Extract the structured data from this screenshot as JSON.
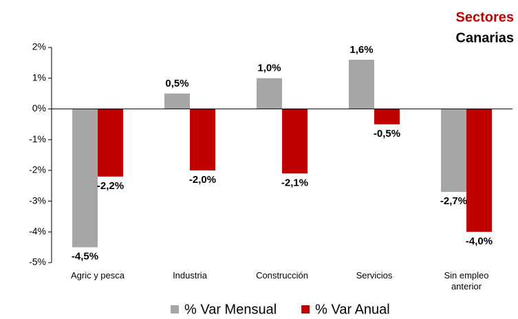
{
  "chart_data": {
    "type": "bar",
    "title": "Sectores",
    "subtitle": "Canarias",
    "categories": [
      "Agric y pesca",
      "Industria",
      "Construcción",
      "Servicios",
      "Sin empleo anterior"
    ],
    "series": [
      {
        "name": "% Var Mensual",
        "color": "#a6a6a6",
        "values": [
          -4.5,
          0.5,
          1.0,
          1.6,
          -2.7
        ],
        "value_labels": [
          "-4,5%",
          "0,5%",
          "1,0%",
          "1,6%",
          "-2,7%"
        ]
      },
      {
        "name": "% Var Anual",
        "color": "#c00000",
        "values": [
          -2.2,
          -2.0,
          -2.1,
          -0.5,
          -4.0
        ],
        "value_labels": [
          "-2,2%",
          "-2,0%",
          "-2,1%",
          "-0,5%",
          "-4,0%"
        ]
      }
    ],
    "ylim": [
      -5,
      2
    ],
    "yticks": [
      {
        "value": 2,
        "label": "2%"
      },
      {
        "value": 1,
        "label": "1%"
      },
      {
        "value": 0,
        "label": "0%"
      },
      {
        "value": -1,
        "label": "-1%"
      },
      {
        "value": -2,
        "label": "-2%"
      },
      {
        "value": -3,
        "label": "-3%"
      },
      {
        "value": -4,
        "label": "-4%"
      },
      {
        "value": -5,
        "label": "-5%"
      }
    ],
    "grid": false,
    "legend": "bottom"
  }
}
